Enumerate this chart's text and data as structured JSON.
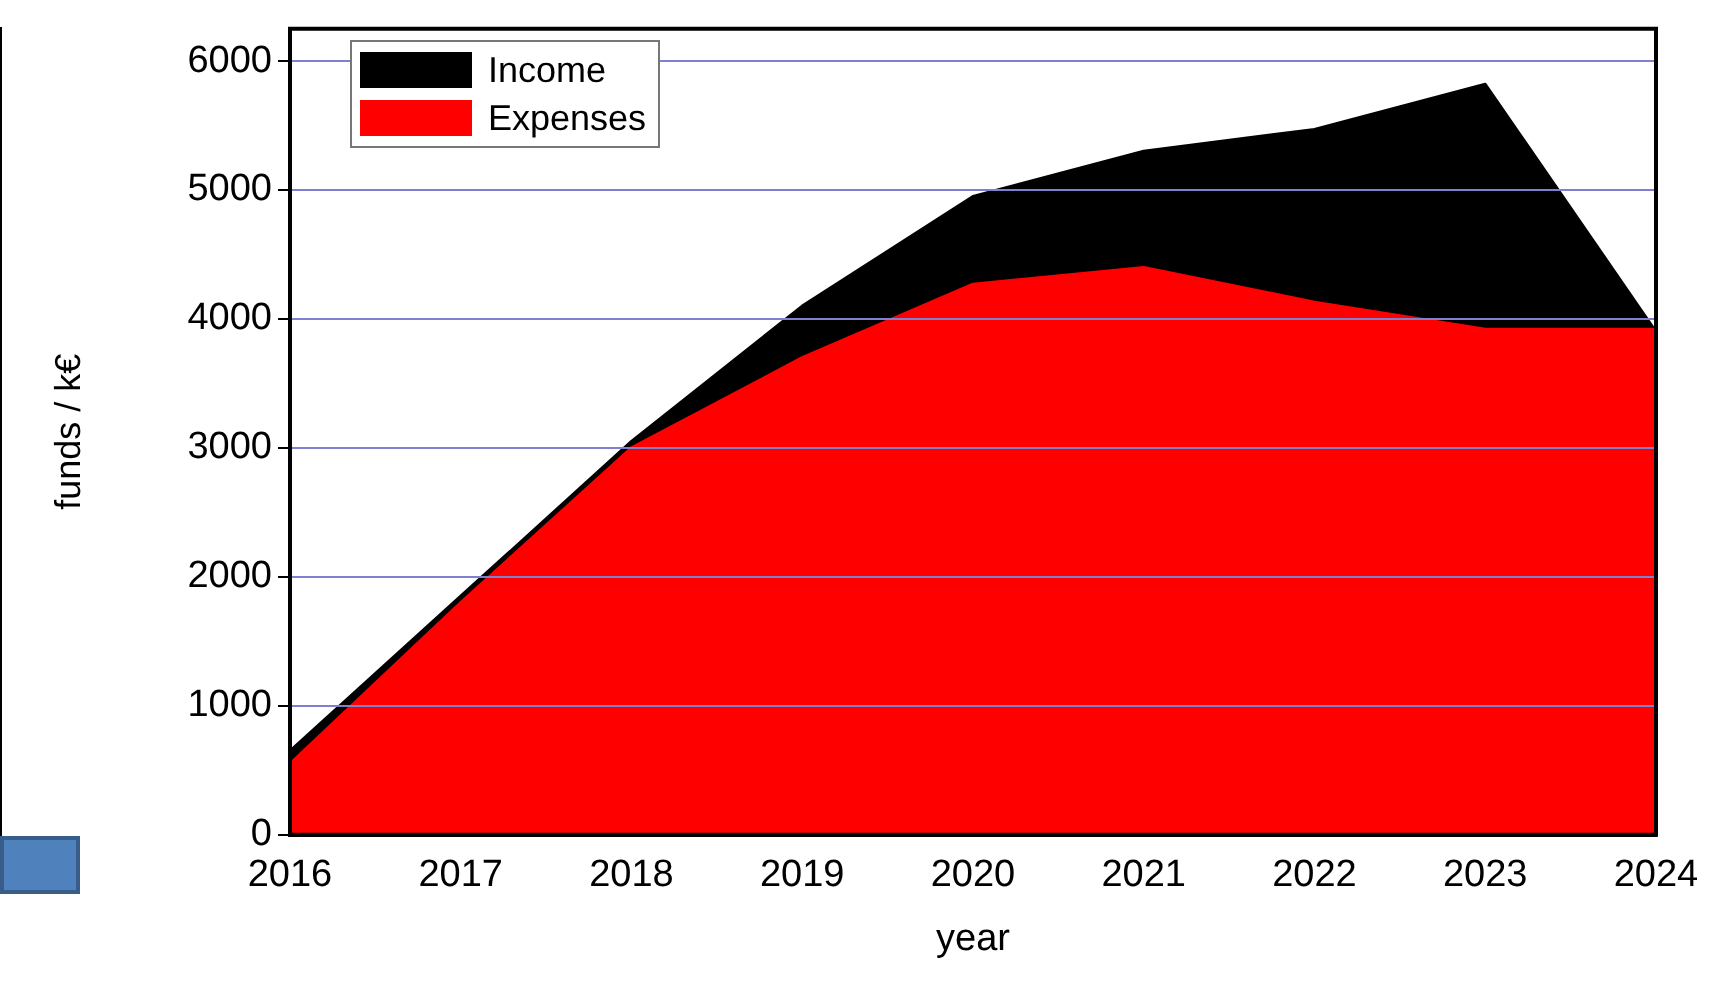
{
  "chart_data": {
    "type": "area",
    "xlabel": "year",
    "ylabel": "funds / k€",
    "x": [
      2016,
      2017,
      2018,
      2019,
      2020,
      2021,
      2022,
      2023,
      2024
    ],
    "series": [
      {
        "name": "Income",
        "color": "#000000",
        "values": [
          650,
          1850,
          3050,
          4100,
          4950,
          5300,
          5470,
          5820,
          3900
        ]
      },
      {
        "name": "Expenses",
        "color": "#ff0000",
        "values": [
          550,
          1800,
          3000,
          3700,
          4270,
          4400,
          4130,
          3920,
          3920
        ]
      }
    ],
    "xlim": [
      2016,
      2024
    ],
    "xticks": [
      2016,
      2017,
      2018,
      2019,
      2020,
      2021,
      2022,
      2023,
      2024
    ],
    "ylim": [
      0,
      6250
    ],
    "yticks": [
      0,
      1000,
      2000,
      3000,
      4000,
      5000,
      6000
    ],
    "grid": "y",
    "legend": "top left"
  }
}
